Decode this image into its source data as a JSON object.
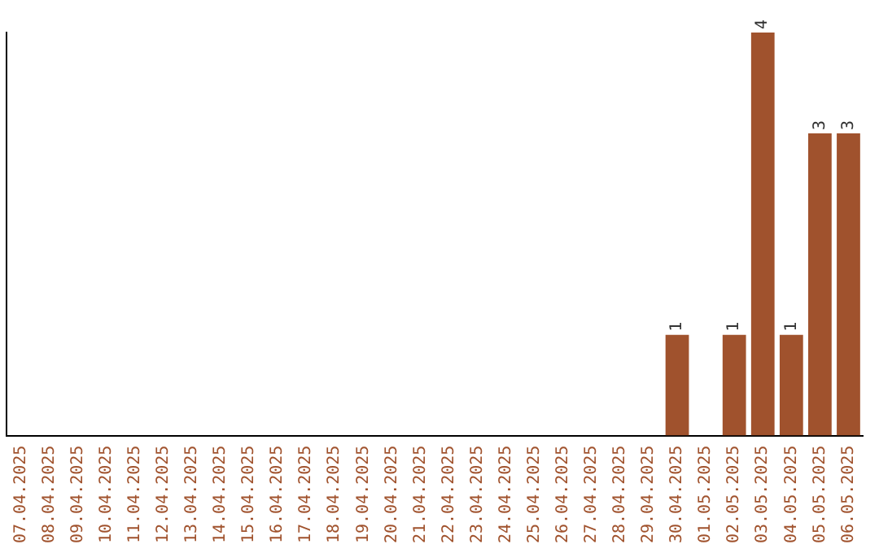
{
  "chart_data": {
    "type": "bar",
    "categories": [
      "07.04.2025",
      "08.04.2025",
      "09.04.2025",
      "10.04.2025",
      "11.04.2025",
      "12.04.2025",
      "13.04.2025",
      "14.04.2025",
      "15.04.2025",
      "16.04.2025",
      "17.04.2025",
      "18.04.2025",
      "19.04.2025",
      "20.04.2025",
      "21.04.2025",
      "22.04.2025",
      "23.04.2025",
      "24.04.2025",
      "25.04.2025",
      "26.04.2025",
      "27.04.2025",
      "28.04.2025",
      "29.04.2025",
      "30.04.2025",
      "01.05.2025",
      "02.05.2025",
      "03.05.2025",
      "04.05.2025",
      "05.05.2025",
      "06.05.2025"
    ],
    "values": [
      null,
      null,
      null,
      null,
      null,
      null,
      null,
      null,
      null,
      null,
      null,
      null,
      null,
      null,
      null,
      null,
      null,
      null,
      null,
      null,
      null,
      null,
      null,
      1,
      null,
      1,
      4,
      1,
      3,
      3
    ],
    "data_labels": true,
    "color": "#a0522d",
    "grid": false,
    "legend": false,
    "tick_labels": "x"
  }
}
